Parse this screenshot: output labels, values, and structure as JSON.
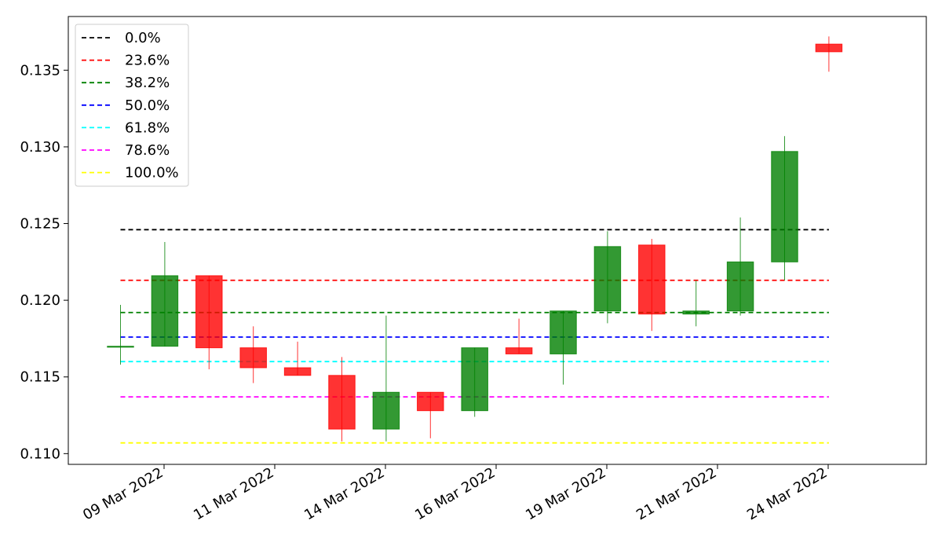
{
  "chart_data": {
    "type": "candlestick",
    "title": "",
    "xlabel": "",
    "ylabel": "",
    "ylim": [
      0.1093,
      0.1385
    ],
    "y_ticks": [
      0.11,
      0.115,
      0.12,
      0.125,
      0.13,
      0.135
    ],
    "y_tick_labels": [
      "0.110",
      "0.115",
      "0.120",
      "0.125",
      "0.130",
      "0.135"
    ],
    "x_tick_labels": [
      "09 Mar 2022",
      "11 Mar 2022",
      "14 Mar 2022",
      "16 Mar 2022",
      "19 Mar 2022",
      "21 Mar 2022",
      "24 Mar 2022"
    ],
    "grid": false,
    "legend_position": "top-left",
    "colors": {
      "up": "#008000",
      "down": "#ff0000"
    },
    "candles": [
      {
        "open": 0.117,
        "high": 0.1197,
        "low": 0.1158,
        "close": 0.117
      },
      {
        "open": 0.117,
        "high": 0.1238,
        "low": 0.117,
        "close": 0.1216
      },
      {
        "open": 0.1216,
        "high": 0.1216,
        "low": 0.1155,
        "close": 0.1169
      },
      {
        "open": 0.1169,
        "high": 0.1183,
        "low": 0.1146,
        "close": 0.1156
      },
      {
        "open": 0.1156,
        "high": 0.1173,
        "low": 0.1151,
        "close": 0.1151
      },
      {
        "open": 0.1151,
        "high": 0.1163,
        "low": 0.1108,
        "close": 0.1116
      },
      {
        "open": 0.1116,
        "high": 0.119,
        "low": 0.1108,
        "close": 0.114
      },
      {
        "open": 0.114,
        "high": 0.114,
        "low": 0.111,
        "close": 0.1128
      },
      {
        "open": 0.1128,
        "high": 0.1169,
        "low": 0.1124,
        "close": 0.1169
      },
      {
        "open": 0.1169,
        "high": 0.1188,
        "low": 0.1165,
        "close": 0.1165
      },
      {
        "open": 0.1165,
        "high": 0.1193,
        "low": 0.1145,
        "close": 0.1193
      },
      {
        "open": 0.1193,
        "high": 0.1245,
        "low": 0.1185,
        "close": 0.1235
      },
      {
        "open": 0.1236,
        "high": 0.124,
        "low": 0.118,
        "close": 0.1191
      },
      {
        "open": 0.1191,
        "high": 0.1213,
        "low": 0.1183,
        "close": 0.1193
      },
      {
        "open": 0.1193,
        "high": 0.1254,
        "low": 0.119,
        "close": 0.1225
      },
      {
        "open": 0.1225,
        "high": 0.1307,
        "low": 0.1213,
        "close": 0.1297
      },
      {
        "open": 0.1367,
        "high": 0.1372,
        "low": 0.1349,
        "close": 0.1362
      }
    ],
    "fib_levels": [
      {
        "label": "0.0%",
        "value": 0.1246,
        "color": "#000000"
      },
      {
        "label": "23.6%",
        "value": 0.1213,
        "color": "#ff0000"
      },
      {
        "label": "38.2%",
        "value": 0.1192,
        "color": "#008000"
      },
      {
        "label": "50.0%",
        "value": 0.1176,
        "color": "#0000ff"
      },
      {
        "label": "61.8%",
        "value": 0.116,
        "color": "#00ffff"
      },
      {
        "label": "78.6%",
        "value": 0.1137,
        "color": "#ff00ff"
      },
      {
        "label": "100.0%",
        "value": 0.1107,
        "color": "#ffff00"
      }
    ]
  }
}
